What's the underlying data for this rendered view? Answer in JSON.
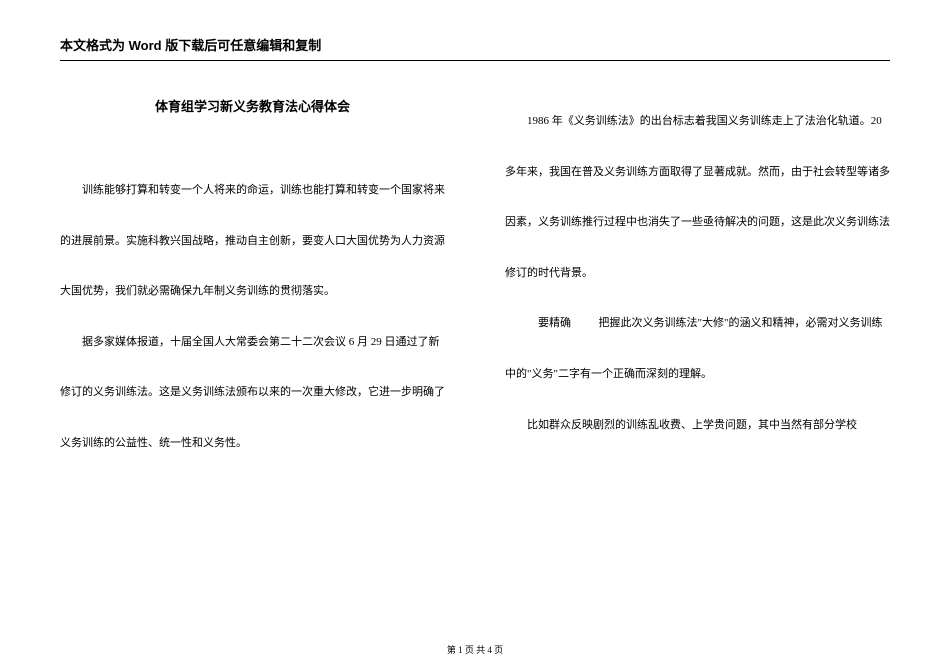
{
  "header": {
    "notice": "本文格式为 Word 版下载后可任意编辑和复制"
  },
  "document": {
    "title": "体育组学习新义务教育法心得体会",
    "left_column": {
      "p1": "训练能够打算和转变一个人将来的命运，训练也能打算和转变一个国家将来的进展前景。实施科教兴国战略，推动自主创新，要变人口大国优势为人力资源大国优势，我们就必需确保九年制义务训练的贯彻落实。",
      "p2": "据多家媒体报道，十届全国人大常委会第二十二次会议 6 月 29 日通过了新修订的义务训练法。这是义务训练法颁布以来的一次重大修改，它进一步明确了义务训练的公益性、统一性和义务性。"
    },
    "right_column": {
      "p1": "1986 年《义务训练法》的出台标志着我国义务训练走上了法治化轨道。20 多年来，我国在普及义务训练方面取得了显著成就。然而，由于社会转型等诸多因素，义务训练推行过程中也消失了一些亟待解决的问题，这是此次义务训练法修订的时代背景。",
      "p2_label": "要精确",
      "p2_text": "把握此次义务训练法\"大修\"的涵义和精神，必需对义务训练中的\"义务\"二字有一个正确而深刻的理解。",
      "p3": "比如群众反映剧烈的训练乱收费、上学贵问题，其中当然有部分学校"
    }
  },
  "footer": {
    "pagination": "第 1 页 共 4 页"
  }
}
